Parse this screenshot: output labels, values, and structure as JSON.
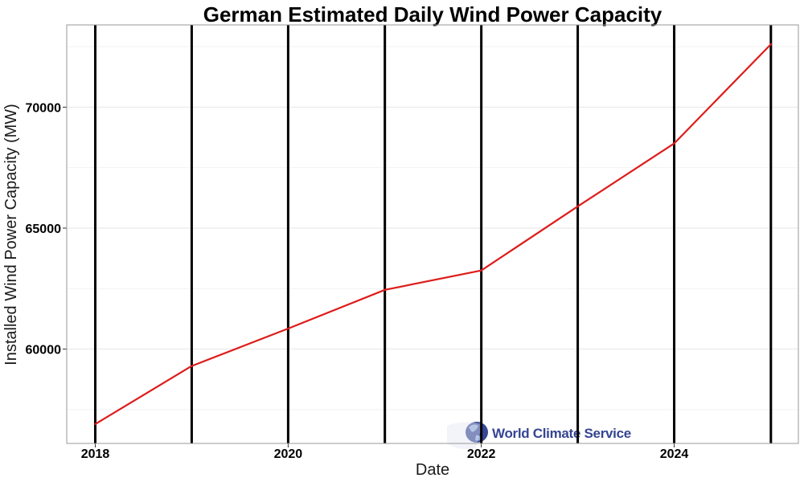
{
  "chart_data": {
    "type": "line",
    "title": "German Estimated Daily Wind Power Capacity",
    "xlabel": "Date",
    "ylabel": "Installed Wind Power Capacity (MW)",
    "x_ticks": [
      "2018",
      "2020",
      "2022",
      "2024"
    ],
    "y_ticks": [
      60000,
      65000,
      70000
    ],
    "xlim": [
      "2017-09-15",
      "2025-04-15"
    ],
    "ylim": [
      56100,
      73400
    ],
    "grid": true,
    "year_markers": [
      "2018-01-01",
      "2019-01-01",
      "2020-01-01",
      "2021-01-01",
      "2022-01-01",
      "2023-01-01",
      "2024-01-01",
      "2025-01-01"
    ],
    "series": [
      {
        "color": "#dd1c1a",
        "points": [
          {
            "x": "2018-01-01",
            "y": 56900
          },
          {
            "x": "2019-01-01",
            "y": 59300
          },
          {
            "x": "2020-01-01",
            "y": 60850
          },
          {
            "x": "2021-01-01",
            "y": 62450
          },
          {
            "x": "2022-01-01",
            "y": 63250
          },
          {
            "x": "2023-01-01",
            "y": 65900
          },
          {
            "x": "2024-01-01",
            "y": 68500
          },
          {
            "x": "2025-01-01",
            "y": 72600
          }
        ]
      }
    ]
  },
  "watermark": {
    "text": "World Climate Service",
    "icon": "globe-icon"
  }
}
